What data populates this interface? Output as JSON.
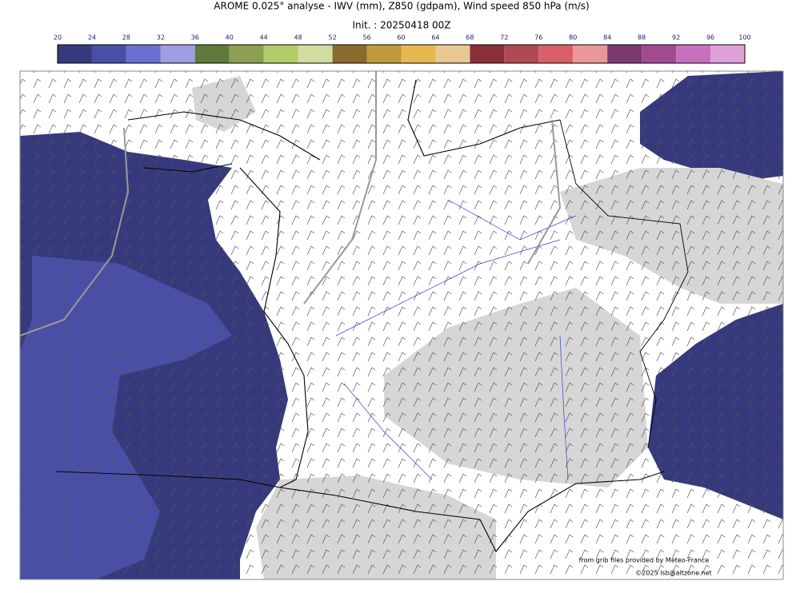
{
  "header": {
    "title": "AROME 0.025° analyse - IWV (mm), Z850 (gdpam), Wind speed 850 hPa (m/s)",
    "init": "Init. : 20250418 00Z"
  },
  "colorbar": {
    "ticks": [
      20,
      24,
      28,
      32,
      36,
      40,
      44,
      48,
      52,
      56,
      60,
      64,
      68,
      72,
      76,
      80,
      84,
      88,
      92,
      96,
      100
    ],
    "colors": [
      "#363a7c",
      "#4a4fa6",
      "#6b6fcf",
      "#9e9fe0",
      "#5f7a3a",
      "#8aa050",
      "#b3cc6a",
      "#d0dca0",
      "#8c6a2e",
      "#c09a3c",
      "#e8b850",
      "#e8c890",
      "#8a3038",
      "#b04a50",
      "#d86068",
      "#e89898",
      "#7a3a70",
      "#a04a90",
      "#c870c0",
      "#e0a0d8"
    ]
  },
  "credits": {
    "source": "from grib files provided by Meteo-France",
    "copyright": "©2025 lsb@altzone.net"
  }
}
